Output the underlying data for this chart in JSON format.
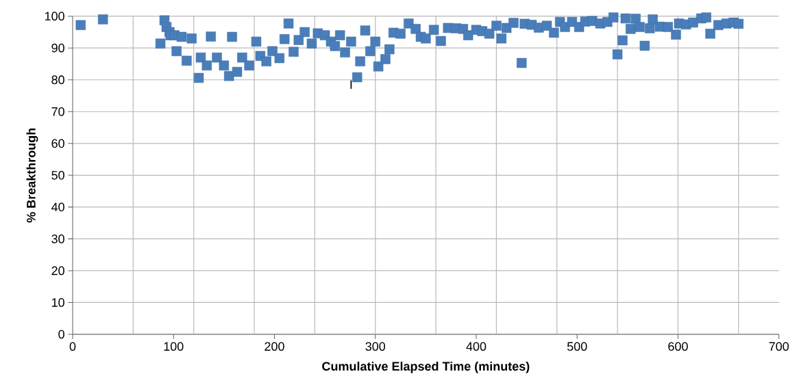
{
  "chart_data": {
    "type": "scatter",
    "xlabel": "Cumulative Elapsed Time (minutes)",
    "ylabel": "% Breakthrough",
    "x": [
      8,
      30,
      87,
      91,
      93,
      96,
      97,
      101,
      103,
      108,
      113,
      118,
      125,
      127,
      133,
      137,
      143,
      150,
      155,
      158,
      163,
      168,
      175,
      182,
      186,
      192,
      198,
      205,
      210,
      214,
      219,
      224,
      230,
      237,
      243,
      250,
      256,
      260,
      265,
      270,
      276,
      282,
      285,
      290,
      295,
      300,
      303,
      310,
      314,
      318,
      325,
      333,
      340,
      345,
      350,
      358,
      365,
      372,
      380,
      387,
      392,
      400,
      406,
      413,
      420,
      425,
      430,
      437,
      445,
      448,
      455,
      462,
      470,
      477,
      483,
      488,
      495,
      502,
      508,
      515,
      523,
      530,
      536,
      540,
      545,
      548,
      553,
      558,
      562,
      567,
      572,
      575,
      582,
      590,
      598,
      601,
      608,
      615,
      623,
      628,
      632,
      640,
      648,
      655,
      660
    ],
    "series": [
      {
        "color": "#4a7ebb",
        "values": [
          97.2,
          99,
          91.4,
          98.7,
          96.6,
          95,
          94,
          94,
          89,
          93.5,
          86,
          93,
          80.6,
          87,
          84.5,
          93.6,
          87,
          84.5,
          81.2,
          93.5,
          82.5,
          87,
          84.5,
          92,
          87.5,
          85.8,
          89,
          86.8,
          92.8,
          97.7,
          88.8,
          92.5,
          95,
          91.4,
          94.6,
          94,
          92,
          90.6,
          94,
          88.6,
          92,
          80.8,
          85.8,
          95.5,
          89,
          92,
          84.2,
          86.5,
          89.6,
          94.8,
          94.5,
          97.7,
          96,
          93.5,
          93,
          95.7,
          92.2,
          96.3,
          96.2,
          96,
          94,
          95.7,
          95.3,
          94.5,
          97,
          93,
          96.3,
          97.9,
          85.3,
          97.6,
          97.3,
          96.4,
          97,
          94.8,
          98.2,
          96.6,
          98.2,
          96.6,
          98.3,
          98.5,
          97.7,
          98.2,
          99.6,
          88,
          92.4,
          99.3,
          96,
          99.2,
          96.6,
          90.7,
          96.2,
          99,
          96.7,
          96.6,
          94.2,
          97.7,
          97.4,
          98,
          99.3,
          99.6,
          94.5,
          97.2,
          97.7,
          98,
          97.6
        ]
      }
    ],
    "marker": "square",
    "grid": true,
    "xlim": [
      0,
      700
    ],
    "ylim": [
      0,
      100
    ],
    "xticks": [
      0,
      100,
      200,
      300,
      400,
      500,
      600,
      700,
      {
        "value": 60,
        "label": null
      },
      {
        "value": 120,
        "label": null
      },
      {
        "value": 180,
        "label": null
      },
      {
        "value": 240,
        "label": null
      },
      {
        "value": 300,
        "label": null
      },
      {
        "value": 360,
        "label": null
      },
      {
        "value": 420,
        "label": null
      },
      {
        "value": 480,
        "label": null
      },
      {
        "value": 540,
        "label": null
      },
      {
        "value": 600,
        "label": null
      },
      {
        "value": 660,
        "label": null
      }
    ],
    "yticks": [
      0,
      10,
      20,
      30,
      40,
      50,
      60,
      70,
      80,
      90,
      100
    ],
    "annotations": [
      {
        "text": "I",
        "x": 276,
        "y": 78.5
      }
    ]
  }
}
